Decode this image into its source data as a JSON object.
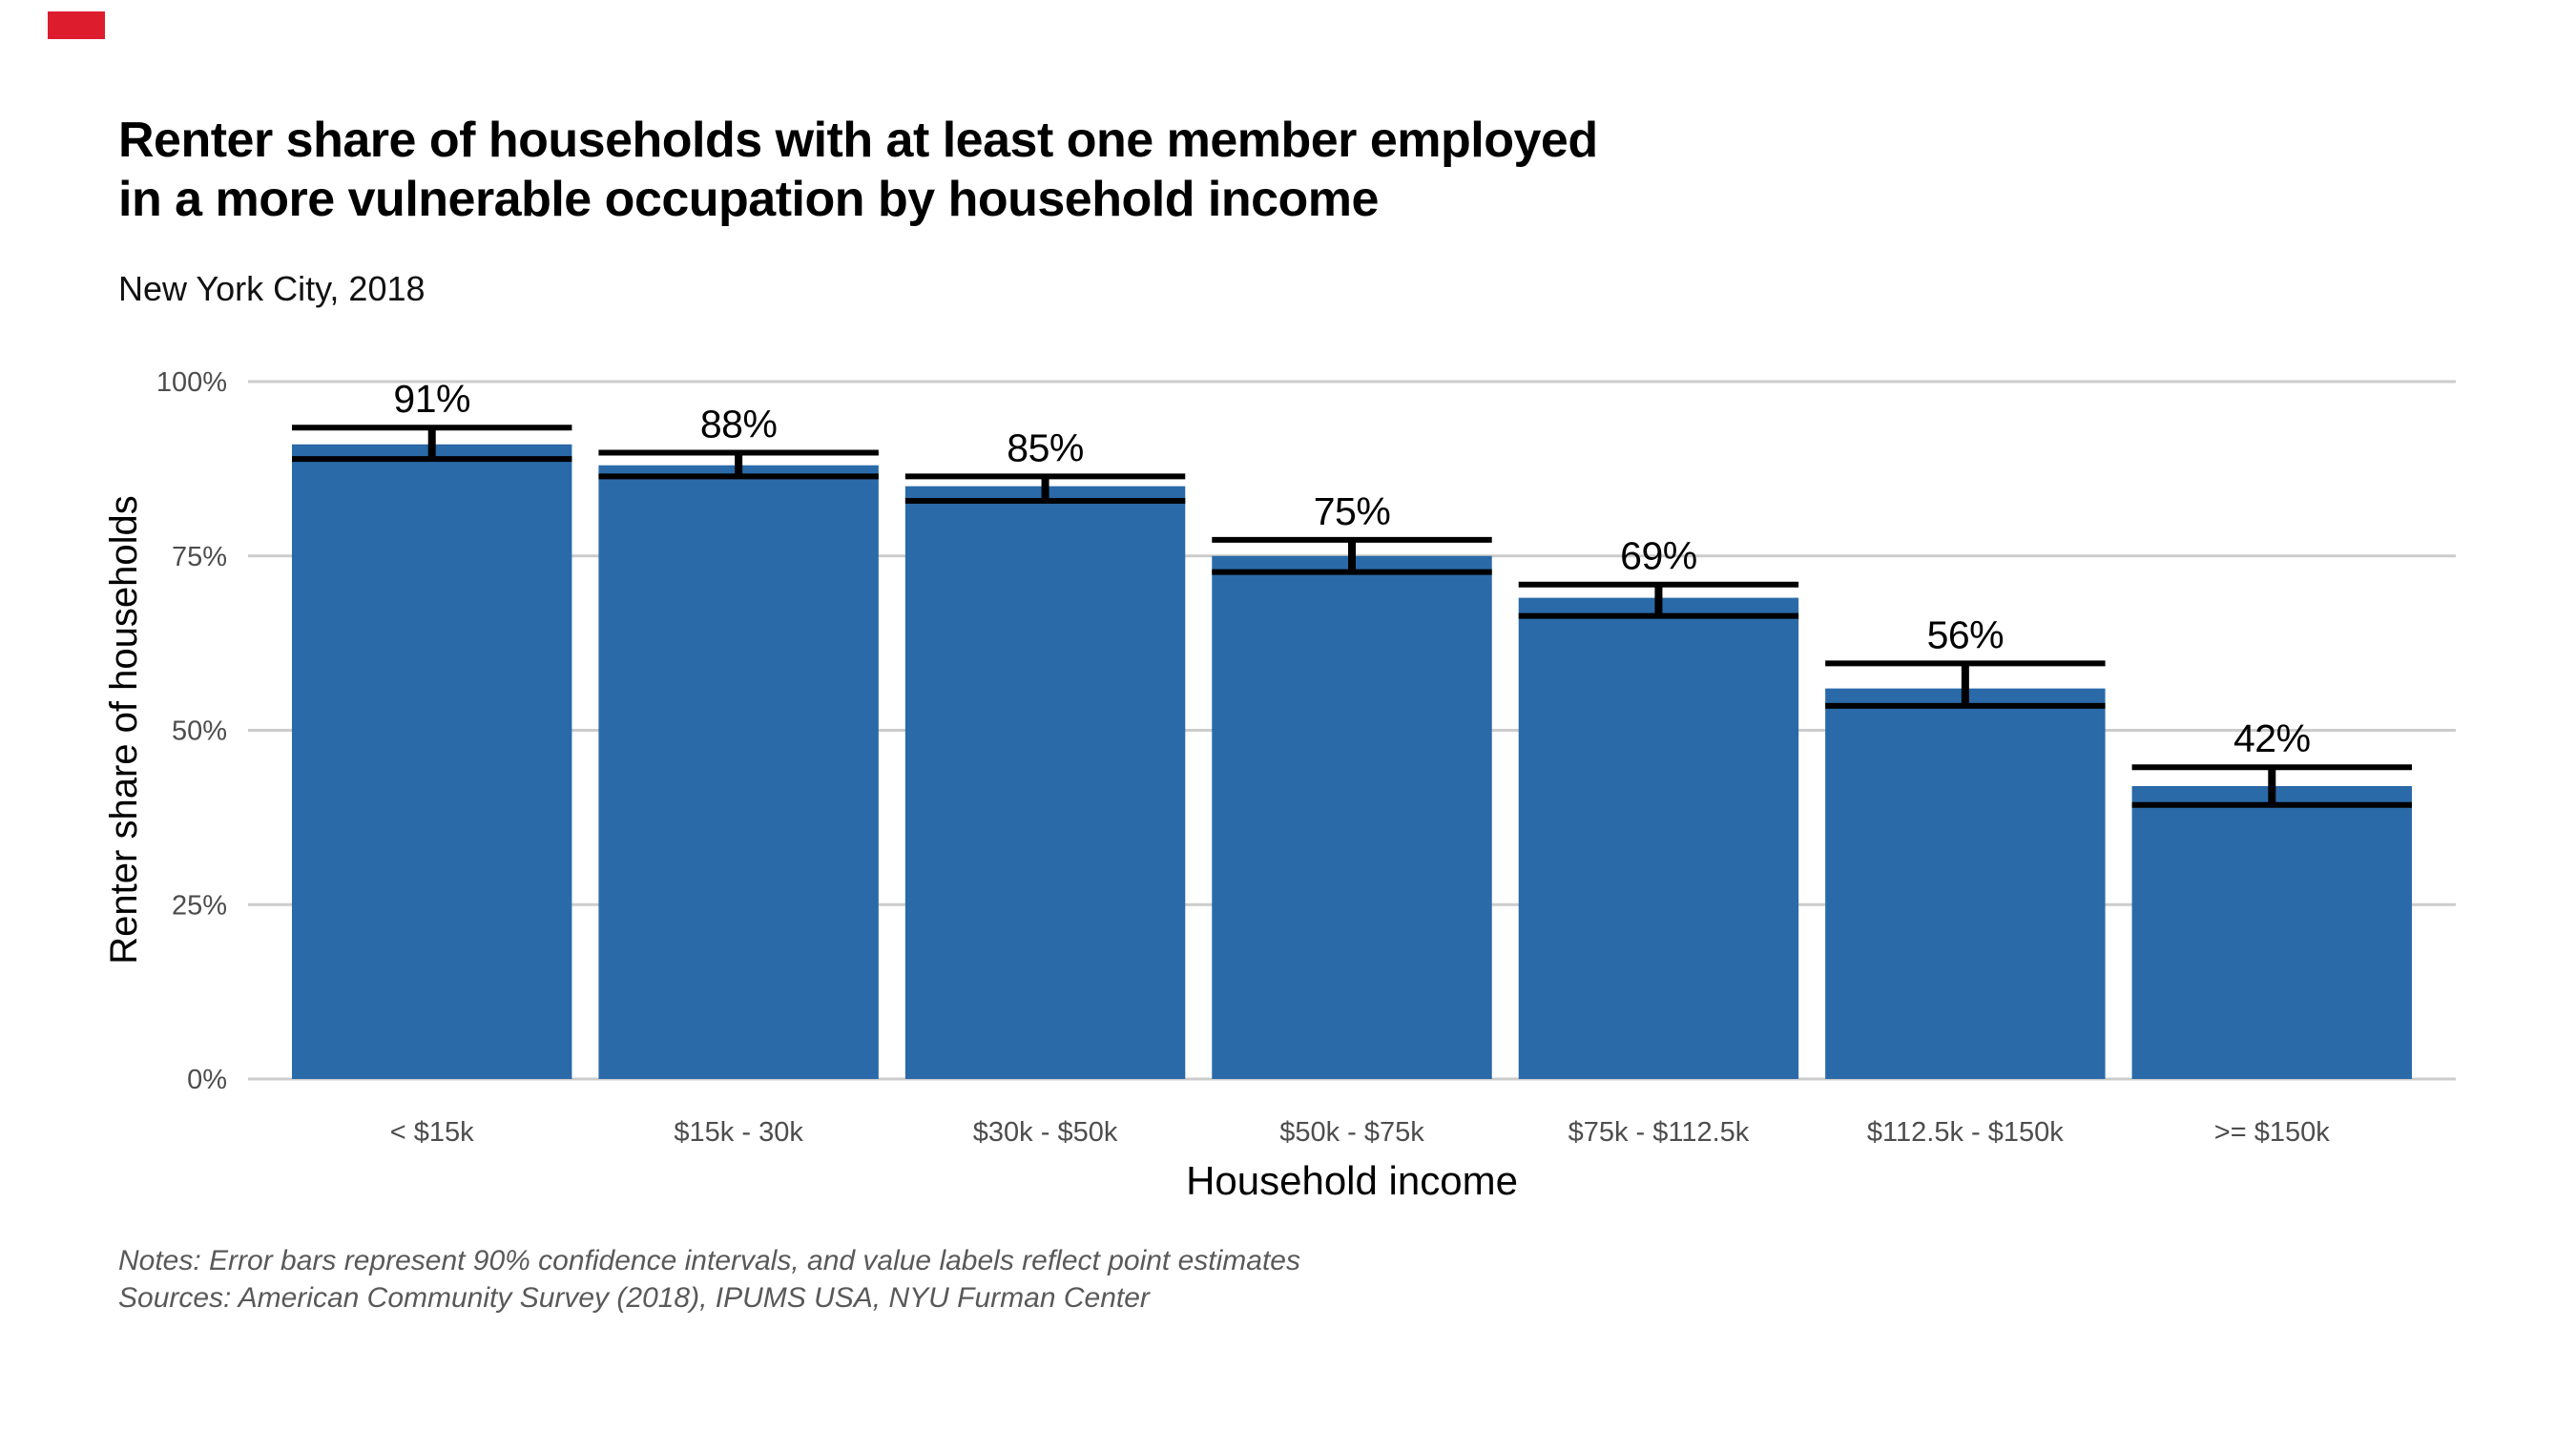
{
  "brand": {
    "mark_color": "#dd1c2e"
  },
  "header": {
    "title_line1": "Renter share of households with at least one member employed",
    "title_line2": "in a more vulnerable occupation by household income",
    "subtitle": "New York City, 2018"
  },
  "chart_data": {
    "type": "bar",
    "title": "Renter share of households with at least one member employed in a more vulnerable occupation by household income",
    "subtitle": "New York City, 2018",
    "categories": [
      "< $15k",
      "$15k - 30k",
      "$30k - $50k",
      "$50k - $75k",
      "$75k - $112.5k",
      "$112.5k - $150k",
      ">= $150k"
    ],
    "values": [
      91,
      88,
      85,
      75,
      69,
      56,
      42
    ],
    "value_labels": [
      "91%",
      "88%",
      "85%",
      "75%",
      "69%",
      "56%",
      "42%"
    ],
    "ci_low": [
      88.9,
      86.4,
      82.9,
      72.7,
      66.4,
      53.5,
      39.3
    ],
    "ci_high": [
      93.4,
      89.8,
      86.4,
      77.3,
      70.9,
      59.6,
      44.7
    ],
    "xlabel": "Household income",
    "ylabel": "Renter share of households",
    "y_ticks": [
      "0%",
      "25%",
      "50%",
      "75%",
      "100%"
    ],
    "y_tick_values": [
      0,
      25,
      50,
      75,
      100
    ],
    "ylim": [
      0,
      100
    ],
    "grid": "horizontal",
    "legend": "none",
    "bar_color": "#2a6aa8",
    "error_bar_color": "#000000",
    "gridline_color": "#cccccc",
    "tick_label_color": "#4d4d4d",
    "axis_title_color": "#000000",
    "value_label_color": "#000000"
  },
  "footer": {
    "notes": "Notes: Error bars represent 90% confidence intervals, and value labels reflect point estimates",
    "sources": "Sources: American Community Survey (2018), IPUMS USA, NYU Furman Center"
  }
}
